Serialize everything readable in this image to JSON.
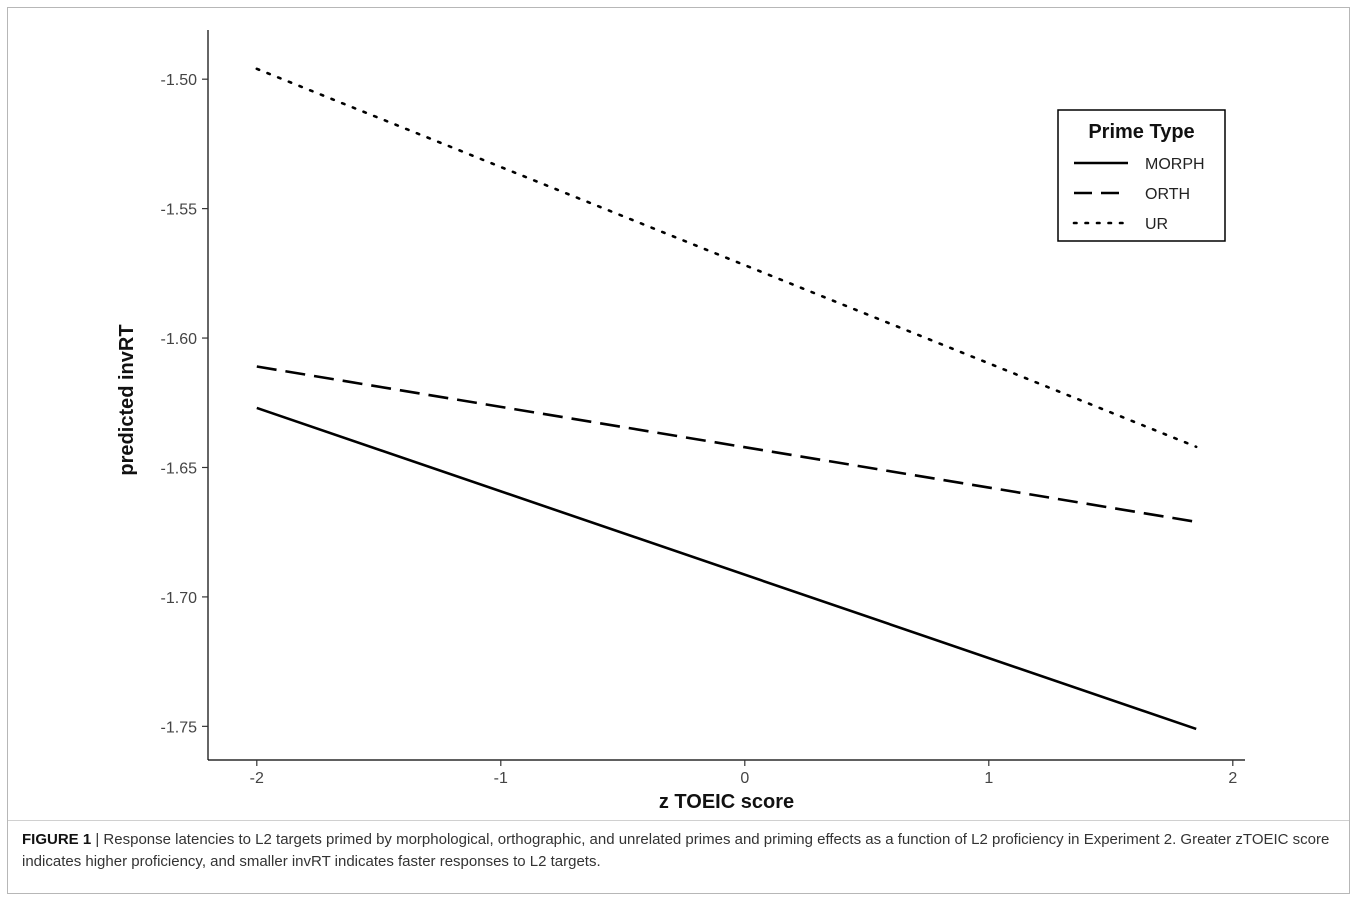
{
  "figure": {
    "label": "FIGURE 1",
    "separator": " | ",
    "caption": "Response latencies to L2 targets primed by morphological, orthographic, and unrelated primes and priming effects as a function of L2 proficiency in Experiment 2. Greater zTOEIC score indicates higher proficiency, and smaller invRT indicates faster responses to L2 targets."
  },
  "chart_data": {
    "type": "line",
    "title": "",
    "xlabel": "z TOEIC score",
    "ylabel": "predicted invRT",
    "xlim": [
      -2.2,
      2.05
    ],
    "ylim": [
      -1.763,
      -1.481
    ],
    "x_ticks": [
      -2,
      -1,
      0,
      1,
      2
    ],
    "x_tick_labels": [
      "-2",
      "-1",
      "0",
      "1",
      "2"
    ],
    "y_ticks": [
      -1.5,
      -1.55,
      -1.6,
      -1.65,
      -1.7,
      -1.75
    ],
    "y_tick_labels": [
      "-1.50",
      "-1.55",
      "-1.60",
      "-1.65",
      "-1.70",
      "-1.75"
    ],
    "grid": false,
    "legend": {
      "title": "Prime Type",
      "position": "top-right"
    },
    "series": [
      {
        "name": "MORPH",
        "linetype": "solid",
        "color": "#000000",
        "x": [
          -2,
          1.85
        ],
        "y": [
          -1.627,
          -1.751
        ]
      },
      {
        "name": "ORTH",
        "linetype": "dashed",
        "color": "#000000",
        "x": [
          -2,
          1.85
        ],
        "y": [
          -1.611,
          -1.671
        ]
      },
      {
        "name": "UR",
        "linetype": "dotted",
        "color": "#000000",
        "x": [
          -2,
          1.85
        ],
        "y": [
          -1.496,
          -1.642
        ]
      }
    ]
  }
}
